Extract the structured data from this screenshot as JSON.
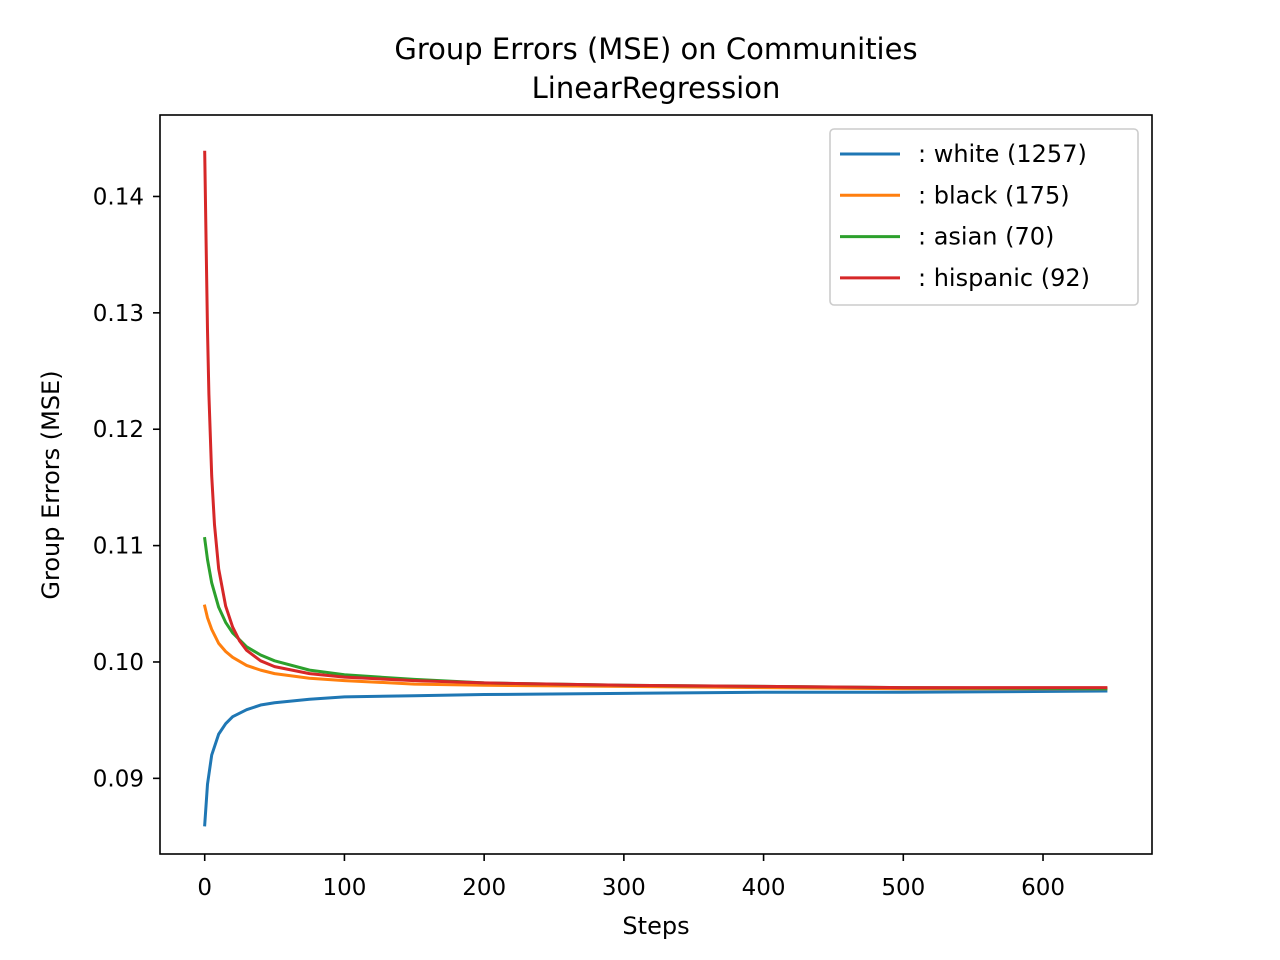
{
  "chart_data": {
    "type": "line",
    "title": "Group Errors (MSE) on Communities",
    "subtitle": "LinearRegression",
    "xlabel": "Steps",
    "ylabel": "Group Errors (MSE)",
    "xlim": [
      -32,
      678
    ],
    "ylim": [
      0.0835,
      0.147
    ],
    "xticks": [
      0,
      100,
      200,
      300,
      400,
      500,
      600
    ],
    "yticks": [
      0.09,
      0.1,
      0.11,
      0.12,
      0.13,
      0.14
    ],
    "ytick_labels": [
      "0.09",
      "0.10",
      "0.11",
      "0.12",
      "0.13",
      "0.14"
    ],
    "grid": false,
    "legend_position": "top-right",
    "series": [
      {
        "name": ": white  (1257)",
        "color": "#1f77b4",
        "x": [
          0,
          2,
          5,
          10,
          15,
          20,
          30,
          40,
          50,
          75,
          100,
          150,
          200,
          300,
          400,
          500,
          645
        ],
        "y": [
          0.086,
          0.0895,
          0.092,
          0.0938,
          0.0947,
          0.0953,
          0.0959,
          0.0963,
          0.0965,
          0.0968,
          0.097,
          0.0971,
          0.0972,
          0.0973,
          0.0974,
          0.0974,
          0.0975
        ]
      },
      {
        "name": ": black  (175)",
        "color": "#ff7f0e",
        "x": [
          0,
          2,
          5,
          10,
          15,
          20,
          30,
          40,
          50,
          75,
          100,
          150,
          200,
          300,
          400,
          500,
          645
        ],
        "y": [
          0.1048,
          0.1038,
          0.1028,
          0.1016,
          0.1009,
          0.1004,
          0.0997,
          0.0993,
          0.099,
          0.0986,
          0.0984,
          0.0981,
          0.098,
          0.0979,
          0.0978,
          0.0977,
          0.0977
        ]
      },
      {
        "name": ": asian  (70)",
        "color": "#2ca02c",
        "x": [
          0,
          2,
          5,
          10,
          15,
          20,
          30,
          40,
          50,
          75,
          100,
          150,
          200,
          300,
          400,
          500,
          645
        ],
        "y": [
          0.1106,
          0.1088,
          0.1068,
          0.1047,
          0.1034,
          0.1025,
          0.1013,
          0.1006,
          0.1001,
          0.0993,
          0.0989,
          0.0985,
          0.0982,
          0.098,
          0.0979,
          0.0978,
          0.0977
        ]
      },
      {
        "name": ": hispanic  (92)",
        "color": "#d62728",
        "x": [
          0,
          1,
          2,
          3,
          5,
          7,
          10,
          15,
          20,
          25,
          30,
          40,
          50,
          75,
          100,
          150,
          200,
          300,
          400,
          500,
          645
        ],
        "y": [
          0.1438,
          0.136,
          0.1285,
          0.123,
          0.116,
          0.1118,
          0.108,
          0.1048,
          0.103,
          0.1018,
          0.101,
          0.1001,
          0.0996,
          0.099,
          0.0987,
          0.0984,
          0.0982,
          0.098,
          0.0979,
          0.0978,
          0.0978
        ]
      }
    ]
  }
}
